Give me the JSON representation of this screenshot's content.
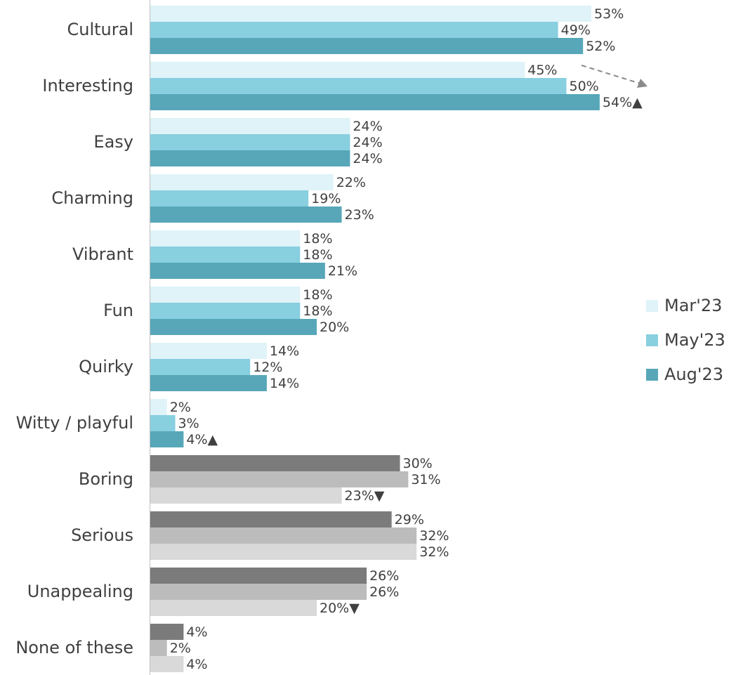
{
  "chart_data": {
    "type": "bar",
    "orientation": "horizontal",
    "categories": [
      "Cultural",
      "Interesting",
      "Easy",
      "Charming",
      "Vibrant",
      "Fun",
      "Quirky",
      "Witty / playful",
      "Boring",
      "Serious",
      "Unappealing",
      "None of these"
    ],
    "xlim": [
      0,
      70
    ],
    "legend": "right",
    "series": [
      {
        "name": "Mar'23",
        "color": "#dff3f8",
        "colors": [
          "#dff3f8",
          "#dff3f8",
          "#dff3f8",
          "#dff3f8",
          "#dff3f8",
          "#dff3f8",
          "#dff3f8",
          "#dff3f8",
          "#7b7b7b",
          "#7b7b7b",
          "#7b7b7b",
          "#7b7b7b"
        ],
        "values": [
          53,
          45,
          24,
          22,
          18,
          18,
          14,
          2,
          30,
          29,
          26,
          4
        ],
        "value_labels": [
          "53%",
          "45%",
          "24%",
          "22%",
          "18%",
          "18%",
          "14%",
          "2%",
          "30%",
          "29%",
          "26%",
          "4%"
        ]
      },
      {
        "name": "May'23",
        "color": "#88cfe0",
        "colors": [
          "#88cfe0",
          "#88cfe0",
          "#88cfe0",
          "#88cfe0",
          "#88cfe0",
          "#88cfe0",
          "#88cfe0",
          "#88cfe0",
          "#bcbcbc",
          "#bcbcbc",
          "#bcbcbc",
          "#bcbcbc"
        ],
        "values": [
          49,
          50,
          24,
          19,
          18,
          18,
          12,
          3,
          31,
          32,
          26,
          2
        ],
        "value_labels": [
          "49%",
          "50%",
          "24%",
          "19%",
          "18%",
          "18%",
          "12%",
          "3%",
          "31%",
          "32%",
          "26%",
          "2%"
        ]
      },
      {
        "name": "Aug'23",
        "color": "#57a7b9",
        "colors": [
          "#57a7b9",
          "#57a7b9",
          "#57a7b9",
          "#57a7b9",
          "#57a7b9",
          "#57a7b9",
          "#57a7b9",
          "#57a7b9",
          "#d9d9d9",
          "#d9d9d9",
          "#d9d9d9",
          "#d9d9d9"
        ],
        "values": [
          52,
          54,
          24,
          23,
          21,
          20,
          14,
          4,
          23,
          32,
          20,
          4
        ],
        "value_labels": [
          "52%",
          "54%▲",
          "24%",
          "23%",
          "21%",
          "20%",
          "14%",
          "4%▲",
          "23%▼",
          "32%",
          "20%▼",
          "4%"
        ]
      }
    ]
  }
}
